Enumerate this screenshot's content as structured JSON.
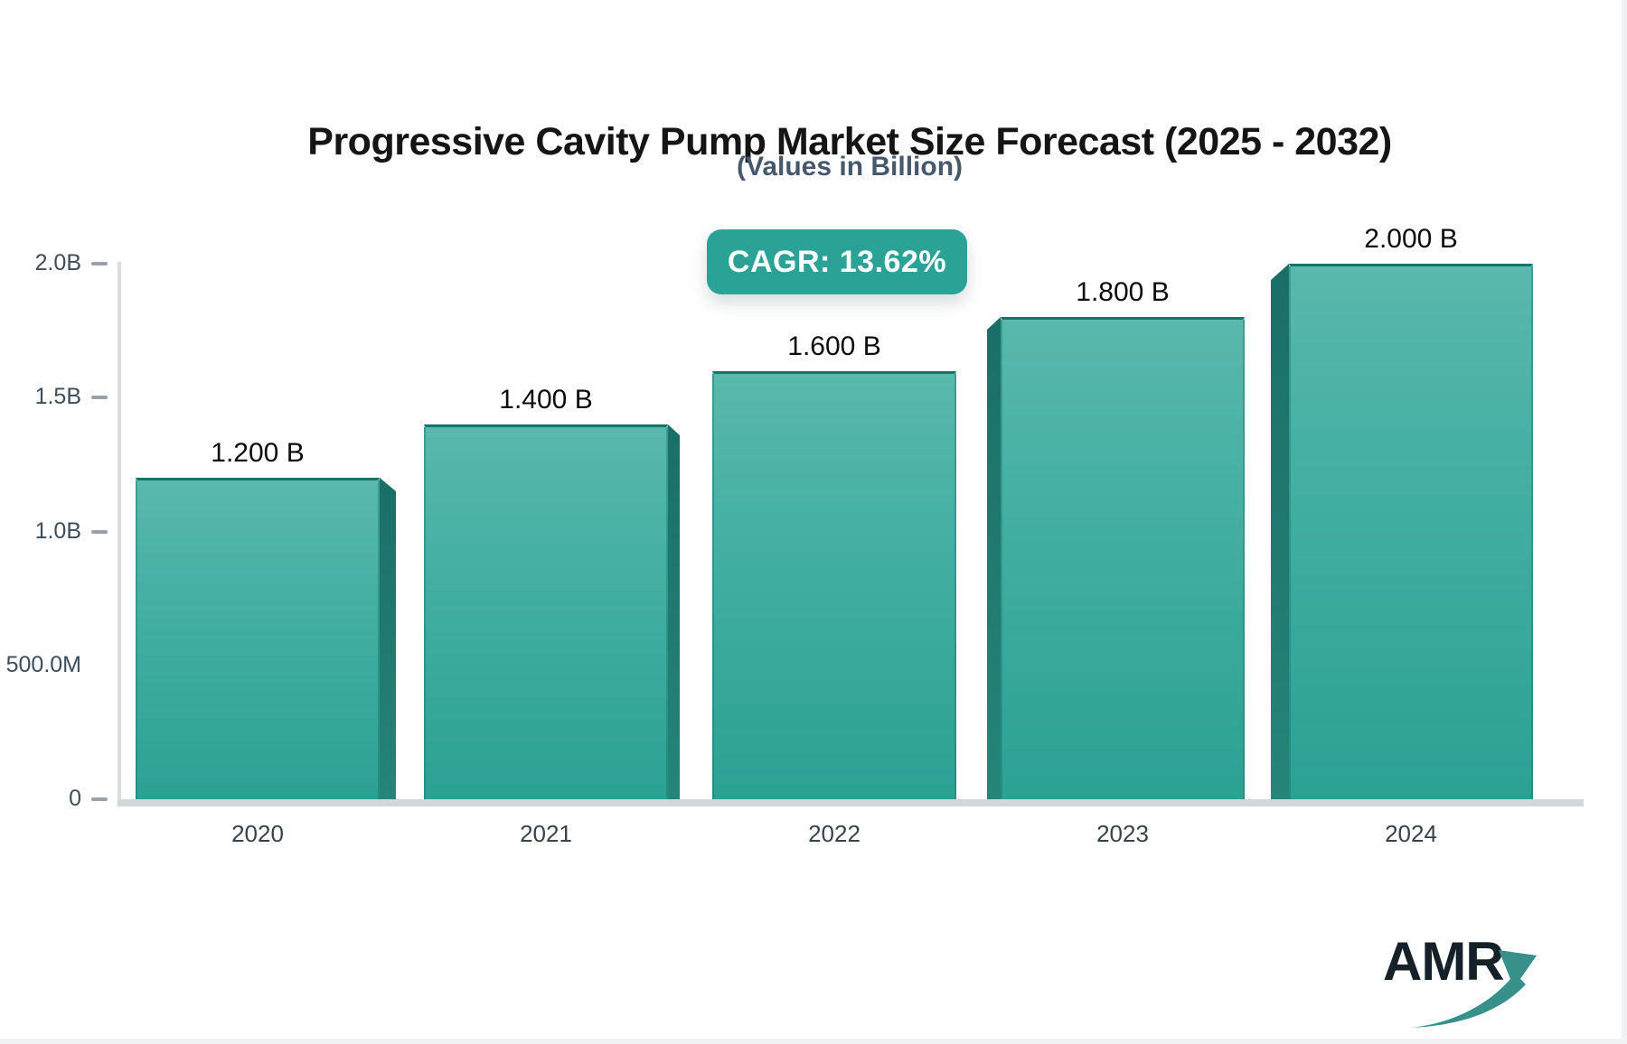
{
  "page": {
    "background": "#ffffff"
  },
  "header": {
    "title": "Progressive Cavity Pump Market Size Forecast (2025 - 2032)",
    "subtitle": "(Values in Billion)"
  },
  "badge": {
    "label": "CAGR: 13.62%",
    "bg_color": "#2aa296",
    "text_color": "#ffffff"
  },
  "chart_data": {
    "type": "bar",
    "title": "Progressive Cavity Pump Market Size Forecast (2025 - 2032)",
    "subtitle": "(Values in Billion)",
    "annotation": "CAGR: 13.62%",
    "categories": [
      "2020",
      "2021",
      "2022",
      "2023",
      "2024"
    ],
    "values": [
      1.2,
      1.4,
      1.6,
      1.8,
      2.0
    ],
    "value_unit": "billion",
    "value_labels": [
      "1.200 B",
      "1.400 B",
      "1.600 B",
      "1.800 B",
      "2.000 B"
    ],
    "xlabel": "",
    "ylabel": "",
    "ylim": [
      0,
      2.0
    ],
    "grid": false,
    "legend": "none",
    "yticks": [
      {
        "label": "2.0B",
        "value": 2.0,
        "dash": true
      },
      {
        "label": "1.5B",
        "value": 1.5,
        "dash": true
      },
      {
        "label": "1.0B",
        "value": 1.0,
        "dash": true
      },
      {
        "label": "500.0M",
        "value": 0.5,
        "dash": false
      },
      {
        "label": "0",
        "value": 0.0,
        "dash": true
      }
    ],
    "bar_color_top": "#5ab8ac",
    "bar_color_bottom": "#2ba194",
    "bar_side_color": "#1d7168",
    "axis_color": "#d6d9de",
    "tick_dash_color": "#98a1ab"
  },
  "logo": {
    "text": "AMR",
    "text_color": "#152028",
    "arrow_color": "#37918a"
  }
}
